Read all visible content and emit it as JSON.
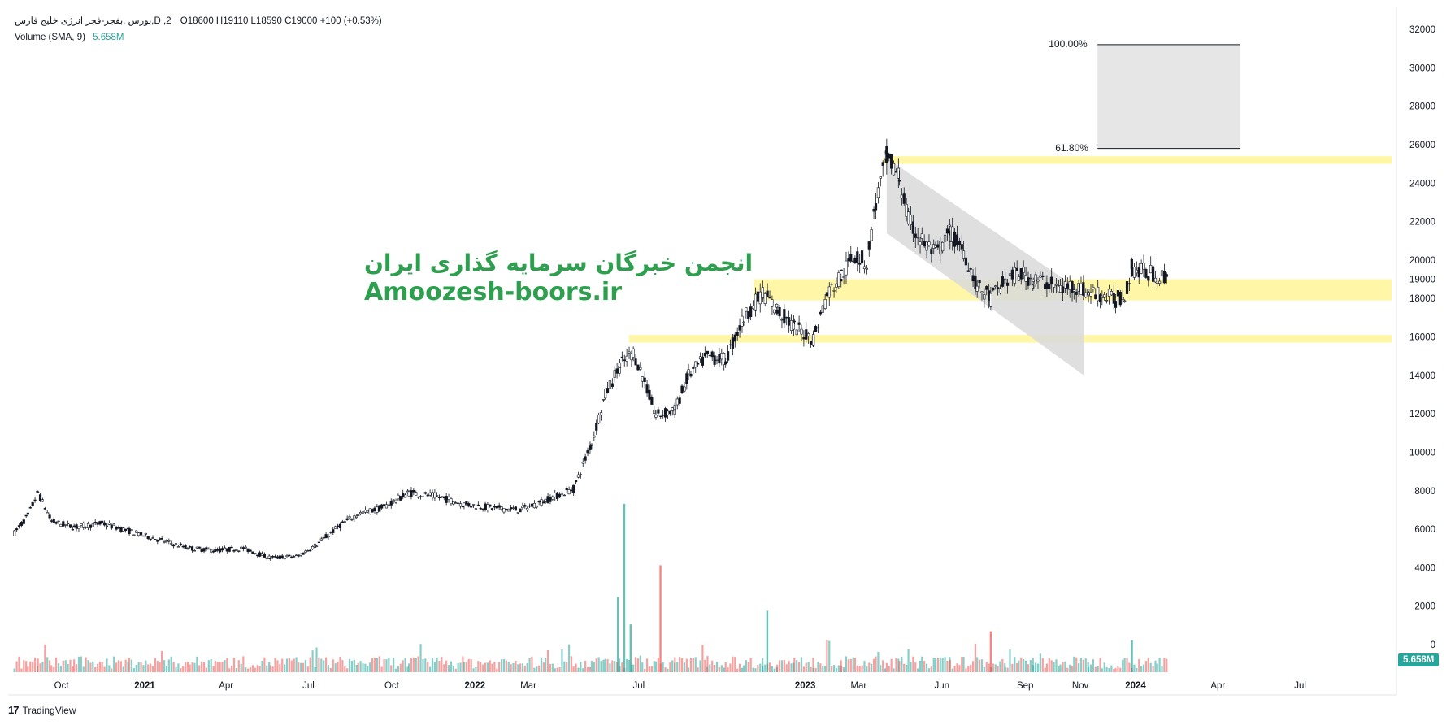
{
  "legend": {
    "symbol_line": "بورس ,بفجر-فجر انرژی خلیج فارس,D ,2",
    "ohlc_line": "O18600  H19110  L18590  C19000  +100 (+0.53%)",
    "volume_label": "Volume (SMA, 9)",
    "volume_value": "5.658M"
  },
  "watermark": {
    "persian": "انجمن خبرگان سرمایه گذاری ایران",
    "site": "Amoozesh-boors.ir"
  },
  "brand": {
    "icon_text": "17",
    "name": "TradingView"
  },
  "volume_badge": "5.658M",
  "fib_levels": [
    {
      "label": "100.00%",
      "price": 31200
    },
    {
      "label": "61.80%",
      "price": 25800
    }
  ],
  "colors": {
    "up_volume": "#26a69a",
    "down_volume": "#ef5350",
    "zone": "#fff59d",
    "channel": "#d9d9d9",
    "fib_box": "#e6e6e6"
  },
  "chart_data": {
    "type": "candlestick",
    "title": "",
    "xlabel": "",
    "ylabel": "",
    "ylim": [
      0,
      32000
    ],
    "yticks": [
      0,
      2000,
      4000,
      6000,
      8000,
      10000,
      12000,
      14000,
      16000,
      18000,
      19000,
      20000,
      22000,
      24000,
      26000,
      28000,
      30000,
      32000
    ],
    "ytick_labels": [
      "0",
      "2000",
      "4000",
      "6000",
      "8000",
      "10000",
      "12000",
      "14000",
      "16000",
      "18000",
      "19000",
      "20000",
      "22000",
      "24000",
      "26000",
      "28000",
      "30000",
      "32000"
    ],
    "xticks": [
      {
        "label": "Oct",
        "date": "2020-10-01"
      },
      {
        "label": "2021",
        "date": "2021-01-01"
      },
      {
        "label": "Apr",
        "date": "2021-04-01"
      },
      {
        "label": "Jul",
        "date": "2021-07-01"
      },
      {
        "label": "Oct",
        "date": "2021-10-01"
      },
      {
        "label": "2022",
        "date": "2022-01-01"
      },
      {
        "label": "Mar",
        "date": "2022-03-01"
      },
      {
        "label": "Jul",
        "date": "2022-07-01"
      },
      {
        "label": "2023",
        "date": "2023-01-01"
      },
      {
        "label": "Mar",
        "date": "2023-03-01"
      },
      {
        "label": "Jun",
        "date": "2023-06-01"
      },
      {
        "label": "Sep",
        "date": "2023-09-01"
      },
      {
        "label": "Nov",
        "date": "2023-11-01"
      },
      {
        "label": "2024",
        "date": "2024-01-01"
      },
      {
        "label": "Apr",
        "date": "2024-04-01"
      },
      {
        "label": "Jul",
        "date": "2024-07-01"
      }
    ],
    "price_path": [
      [
        "2020-08-10",
        5800
      ],
      [
        "2020-08-25",
        6700
      ],
      [
        "2020-09-05",
        7900
      ],
      [
        "2020-09-20",
        6400
      ],
      [
        "2020-10-15",
        6100
      ],
      [
        "2020-11-15",
        6300
      ],
      [
        "2020-12-15",
        5900
      ],
      [
        "2021-01-20",
        5400
      ],
      [
        "2021-02-20",
        5000
      ],
      [
        "2021-03-20",
        4900
      ],
      [
        "2021-04-20",
        5000
      ],
      [
        "2021-05-20",
        4500
      ],
      [
        "2021-06-20",
        4600
      ],
      [
        "2021-07-10",
        5200
      ],
      [
        "2021-08-05",
        6200
      ],
      [
        "2021-08-25",
        6800
      ],
      [
        "2021-09-20",
        7100
      ],
      [
        "2021-10-20",
        7900
      ],
      [
        "2021-11-20",
        7700
      ],
      [
        "2021-12-20",
        7300
      ],
      [
        "2022-01-20",
        7100
      ],
      [
        "2022-02-20",
        7000
      ],
      [
        "2022-03-20",
        7500
      ],
      [
        "2022-04-20",
        8100
      ],
      [
        "2022-05-10",
        10500
      ],
      [
        "2022-05-25",
        13000
      ],
      [
        "2022-06-10",
        14500
      ],
      [
        "2022-06-25",
        15200
      ],
      [
        "2022-07-05",
        14000
      ],
      [
        "2022-07-20",
        11900
      ],
      [
        "2022-08-10",
        12200
      ],
      [
        "2022-08-25",
        14000
      ],
      [
        "2022-09-15",
        15000
      ],
      [
        "2022-10-05",
        14800
      ],
      [
        "2022-10-25",
        17000
      ],
      [
        "2022-11-15",
        18300
      ],
      [
        "2022-12-01",
        17400
      ],
      [
        "2022-12-20",
        16500
      ],
      [
        "2023-01-10",
        15900
      ],
      [
        "2023-01-25",
        18200
      ],
      [
        "2023-02-10",
        19200
      ],
      [
        "2023-02-25",
        20300
      ],
      [
        "2023-03-10",
        19800
      ],
      [
        "2023-03-20",
        23000
      ],
      [
        "2023-04-01",
        25300
      ],
      [
        "2023-04-15",
        24300
      ],
      [
        "2023-04-25",
        22000
      ],
      [
        "2023-05-10",
        21000
      ],
      [
        "2023-05-25",
        20300
      ],
      [
        "2023-06-10",
        21400
      ],
      [
        "2023-06-25",
        20500
      ],
      [
        "2023-07-10",
        18600
      ],
      [
        "2023-07-25",
        18000
      ],
      [
        "2023-08-10",
        18900
      ],
      [
        "2023-08-25",
        19300
      ],
      [
        "2023-09-10",
        19000
      ],
      [
        "2023-09-25",
        18800
      ],
      [
        "2023-10-10",
        18500
      ],
      [
        "2023-10-25",
        18700
      ],
      [
        "2023-11-10",
        18300
      ],
      [
        "2023-11-25",
        18200
      ],
      [
        "2023-12-10",
        17900
      ],
      [
        "2023-12-20",
        18200
      ],
      [
        "2023-12-28",
        19600
      ],
      [
        "2024-01-10",
        19400
      ],
      [
        "2024-01-25",
        19200
      ],
      [
        "2024-02-05",
        19000
      ]
    ],
    "volume_spikes": [
      [
        "2022-06-08",
        3.3
      ],
      [
        "2022-06-15",
        7.4
      ],
      [
        "2022-06-22",
        2.1
      ],
      [
        "2022-07-25",
        4.7
      ],
      [
        "2022-11-20",
        2.7
      ],
      [
        "2023-07-25",
        1.8
      ],
      [
        "2023-12-28",
        1.4
      ]
    ],
    "zones": [
      {
        "y0": 25000,
        "y1": 25400,
        "x0": "2023-03-28",
        "x1": "2024-10-10"
      },
      {
        "y0": 17900,
        "y1": 19000,
        "x0": "2022-11-05",
        "x1": "2024-10-10"
      },
      {
        "y0": 15700,
        "y1": 16100,
        "x0": "2022-06-20",
        "x1": "2024-10-10"
      }
    ],
    "channel": {
      "top_start": [
        "2023-04-01",
        25300
      ],
      "top_end": [
        "2023-11-05",
        18300
      ],
      "bottom_start": [
        "2023-04-01",
        21400
      ],
      "bottom_end": [
        "2023-11-05",
        14000
      ]
    },
    "fib_box": {
      "x0": "2023-11-20",
      "x1": "2024-04-25",
      "y0": 25800,
      "y1": 31200
    }
  }
}
